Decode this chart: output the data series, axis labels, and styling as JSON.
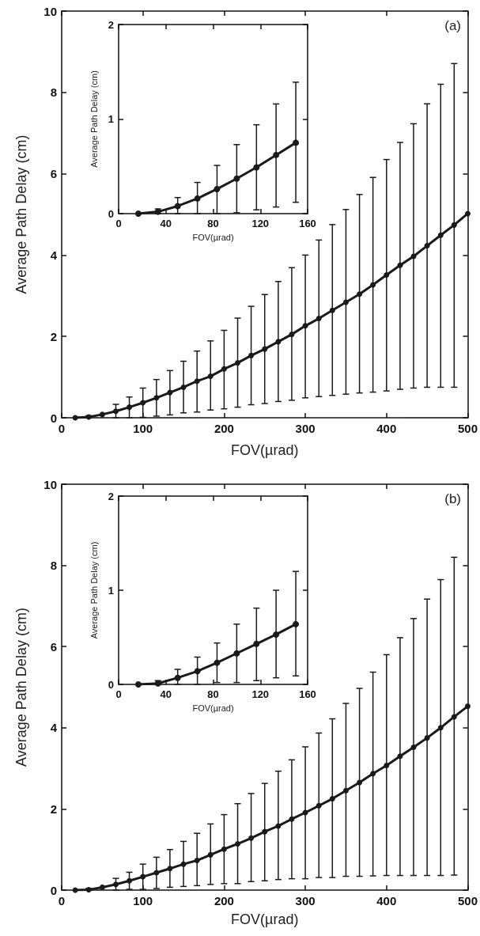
{
  "chart_data": [
    {
      "type": "line",
      "xlabel": "FOV(µrad)",
      "ylabel": "Average Path Delay (cm)",
      "annotations": [
        "(a)"
      ],
      "color": "#1a1a1a",
      "marker": "circle",
      "line_style": "solid",
      "grid": false,
      "xlim": [
        0,
        500
      ],
      "xticks": [
        0,
        100,
        200,
        300,
        400,
        500
      ],
      "ylim": [
        0,
        10
      ],
      "yticks": [
        0,
        2,
        4,
        6,
        8,
        10
      ],
      "x": [
        16.7,
        33.3,
        50,
        66.7,
        83.3,
        100,
        116.7,
        133.3,
        150,
        166.7,
        183.3,
        200,
        216.7,
        233.3,
        250,
        266.7,
        283.3,
        300,
        316.7,
        333.3,
        350,
        366.7,
        383.3,
        400,
        416.7,
        433.3,
        450,
        466.7,
        483.3,
        500
      ],
      "values": [
        0,
        0.02,
        0.08,
        0.16,
        0.26,
        0.37,
        0.49,
        0.62,
        0.75,
        0.9,
        1.02,
        1.2,
        1.35,
        1.53,
        1.69,
        1.87,
        2.05,
        2.26,
        2.44,
        2.64,
        2.84,
        3.04,
        3.27,
        3.51,
        3.75,
        3.97,
        4.23,
        4.49,
        4.74,
        5.02
      ],
      "errors": [
        null,
        [
          0,
          0.05
        ],
        null,
        [
          0,
          0.33
        ],
        [
          0,
          0.51
        ],
        [
          0.01,
          0.73
        ],
        [
          0.04,
          0.94
        ],
        [
          0.07,
          1.16
        ],
        [
          0.12,
          1.39
        ],
        [
          0.14,
          1.64
        ],
        [
          0.19,
          1.89
        ],
        [
          0.22,
          2.15
        ],
        [
          0.26,
          2.45
        ],
        [
          0.32,
          2.74
        ],
        [
          0.35,
          3.03
        ],
        [
          0.4,
          3.35
        ],
        [
          0.43,
          3.69
        ],
        [
          0.49,
          4.0
        ],
        [
          0.52,
          4.37
        ],
        [
          0.55,
          4.75
        ],
        [
          0.58,
          5.12
        ],
        [
          0.61,
          5.49
        ],
        [
          0.63,
          5.91
        ],
        [
          0.66,
          6.35
        ],
        [
          0.7,
          6.77
        ],
        [
          0.73,
          7.23
        ],
        [
          0.75,
          7.72
        ],
        [
          0.75,
          8.2
        ],
        [
          0.75,
          8.71
        ],
        null
      ]
    },
    {
      "type": "line",
      "xlabel": "FOV(µrad)",
      "ylabel": "Average Path Delay (cm)",
      "color": "#1a1a1a",
      "marker": "circle",
      "line_style": "solid",
      "grid": false,
      "xlim": [
        0,
        160
      ],
      "xticks": [
        0,
        40,
        80,
        120,
        160
      ],
      "ylim": [
        0,
        2
      ],
      "yticks": [
        0,
        1,
        2
      ],
      "x": [
        16.7,
        33.3,
        50,
        66.7,
        83.3,
        100,
        116.7,
        133.3,
        150
      ],
      "values": [
        0,
        0.02,
        0.08,
        0.16,
        0.26,
        0.37,
        0.49,
        0.62,
        0.75
      ],
      "errors": [
        null,
        [
          0,
          0.05
        ],
        [
          0,
          0.17
        ],
        [
          0,
          0.33
        ],
        [
          0,
          0.51
        ],
        [
          0.01,
          0.73
        ],
        [
          0.04,
          0.94
        ],
        [
          0.07,
          1.16
        ],
        [
          0.12,
          1.39
        ]
      ]
    },
    {
      "type": "line",
      "xlabel": "FOV(µrad)",
      "ylabel": "Average Path Delay (cm)",
      "annotations": [
        "(b)"
      ],
      "color": "#1a1a1a",
      "marker": "circle",
      "line_style": "solid",
      "grid": false,
      "xlim": [
        0,
        500
      ],
      "xticks": [
        0,
        100,
        200,
        300,
        400,
        500
      ],
      "ylim": [
        0,
        10
      ],
      "yticks": [
        0,
        2,
        4,
        6,
        8,
        10
      ],
      "x": [
        16.7,
        33.3,
        50,
        66.7,
        83.3,
        100,
        116.7,
        133.3,
        150,
        166.7,
        183.3,
        200,
        216.7,
        233.3,
        250,
        266.7,
        283.3,
        300,
        316.7,
        333.3,
        350,
        366.7,
        383.3,
        400,
        416.7,
        433.3,
        450,
        466.7,
        483.3,
        500
      ],
      "values": [
        0,
        0.01,
        0.07,
        0.14,
        0.23,
        0.33,
        0.43,
        0.53,
        0.64,
        0.73,
        0.87,
        1.01,
        1.14,
        1.28,
        1.44,
        1.58,
        1.75,
        1.91,
        2.08,
        2.25,
        2.45,
        2.65,
        2.87,
        3.07,
        3.3,
        3.52,
        3.75,
        4.0,
        4.27,
        4.53
      ],
      "errors": [
        null,
        [
          0,
          0.04
        ],
        null,
        [
          0,
          0.29
        ],
        [
          0.02,
          0.44
        ],
        [
          0.02,
          0.64
        ],
        [
          0.04,
          0.81
        ],
        [
          0.07,
          1.0
        ],
        [
          0.09,
          1.2
        ],
        [
          0.11,
          1.4
        ],
        [
          0.14,
          1.63
        ],
        [
          0.16,
          1.86
        ],
        [
          0.16,
          2.13
        ],
        [
          0.21,
          2.38
        ],
        [
          0.23,
          2.63
        ],
        [
          0.26,
          2.93
        ],
        [
          0.28,
          3.21
        ],
        [
          0.28,
          3.53
        ],
        [
          0.31,
          3.87
        ],
        [
          0.31,
          4.22
        ],
        [
          0.34,
          4.6
        ],
        [
          0.34,
          4.97
        ],
        [
          0.35,
          5.37
        ],
        [
          0.36,
          5.8
        ],
        [
          0.36,
          6.22
        ],
        [
          0.36,
          6.69
        ],
        [
          0.36,
          7.17
        ],
        [
          0.36,
          7.65
        ],
        [
          0.37,
          8.2
        ],
        null
      ]
    },
    {
      "type": "line",
      "xlabel": "FOV(µrad)",
      "ylabel": "Average Path Delay (cm)",
      "color": "#1a1a1a",
      "marker": "circle",
      "line_style": "solid",
      "grid": false,
      "xlim": [
        0,
        160
      ],
      "xticks": [
        0,
        40,
        80,
        120,
        160
      ],
      "ylim": [
        0,
        2
      ],
      "yticks": [
        0,
        1,
        2
      ],
      "x": [
        16.7,
        33.3,
        50,
        66.7,
        83.3,
        100,
        116.7,
        133.3,
        150
      ],
      "values": [
        0,
        0.01,
        0.07,
        0.14,
        0.23,
        0.33,
        0.43,
        0.53,
        0.64
      ],
      "errors": [
        null,
        [
          0,
          0.04
        ],
        [
          0,
          0.16
        ],
        [
          0,
          0.29
        ],
        [
          0.02,
          0.44
        ],
        [
          0.02,
          0.64
        ],
        [
          0.04,
          0.81
        ],
        [
          0.07,
          1.0
        ],
        [
          0.09,
          1.2
        ]
      ]
    }
  ]
}
